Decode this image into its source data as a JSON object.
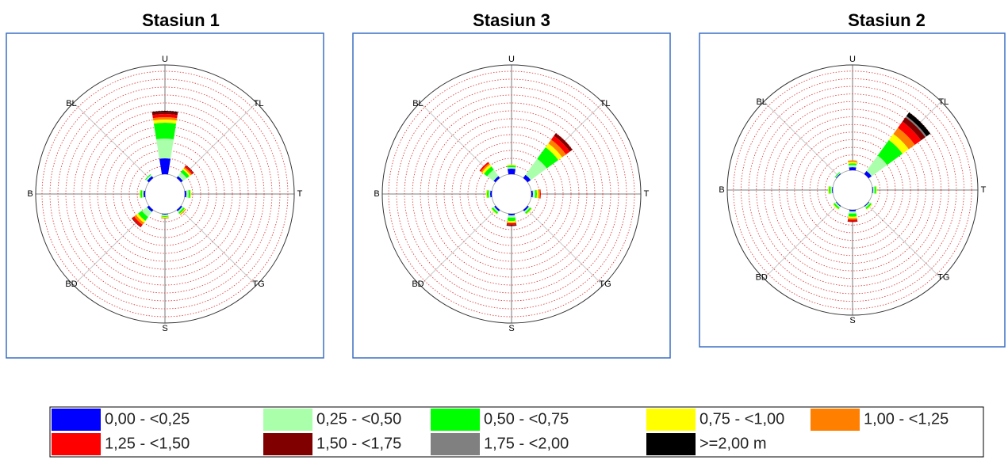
{
  "legend": [
    {
      "name": "0,00 - <0,25",
      "color": "#0000ff"
    },
    {
      "name": "0,25 - <0,50",
      "color": "#aaffaa"
    },
    {
      "name": "0,50 - <0,75",
      "color": "#00ff00"
    },
    {
      "name": "0,75 - <1,00",
      "color": "#ffff00"
    },
    {
      "name": "1,00 - <1,25",
      "color": "#ff8000"
    },
    {
      "name": "1,25 - <1,50",
      "color": "#ff0000"
    },
    {
      "name": "1,50 - <1,75",
      "color": "#800000"
    },
    {
      "name": "1,75 - <2,00",
      "color": "#808080"
    },
    {
      "name": ">=2,00 m",
      "color": "#000000"
    }
  ],
  "chart_data": [
    {
      "type": "rose",
      "title": "Stasiun 1",
      "directions": [
        "U",
        "TL",
        "T",
        "TG",
        "S",
        "BD",
        "B",
        "BL"
      ],
      "rlim": [
        0,
        13.5
      ],
      "rticks": [
        1,
        2,
        3,
        4,
        5,
        6,
        7,
        8,
        9,
        10,
        11,
        12,
        13
      ],
      "series": [
        {
          "values": [
            2,
            0.3,
            0.2,
            0.2,
            0.1,
            0.3,
            0.2,
            0.3
          ]
        },
        {
          "values": [
            2.5,
            0.6,
            0.3,
            0.2,
            0.2,
            0.8,
            0.2,
            0.2
          ]
        },
        {
          "values": [
            2,
            0.4,
            0.2,
            0.2,
            0.1,
            0.6,
            0.2,
            0.1
          ]
        },
        {
          "values": [
            0.4,
            0.2,
            0.1,
            0.1,
            0.1,
            0.3,
            0.1,
            0
          ]
        },
        {
          "values": [
            0.3,
            0.2,
            0,
            0.1,
            0.1,
            0.3,
            0,
            0
          ]
        },
        {
          "values": [
            0.4,
            0.2,
            0,
            0,
            0,
            0.3,
            0,
            0
          ]
        },
        {
          "values": [
            0.3,
            0.1,
            0,
            0,
            0,
            0.1,
            0,
            0
          ]
        },
        {
          "values": [
            0,
            0,
            0,
            0,
            0,
            0,
            0,
            0
          ]
        },
        {
          "values": [
            0.1,
            0,
            0,
            0,
            0,
            0,
            0,
            0
          ]
        }
      ]
    },
    {
      "type": "rose",
      "title": "Stasiun 3",
      "directions": [
        "U",
        "TL",
        "T",
        "TG",
        "S",
        "BD",
        "B",
        "BL"
      ],
      "rlim": [
        0,
        13.5
      ],
      "rticks": [
        1,
        2,
        3,
        4,
        5,
        6,
        7,
        8,
        9,
        10,
        11,
        12,
        13
      ],
      "series": [
        {
          "values": [
            0.7,
            0.5,
            0.2,
            0.2,
            0.2,
            0.2,
            0.2,
            0.3
          ]
        },
        {
          "values": [
            0.2,
            2.5,
            0.3,
            0.2,
            0.3,
            0.2,
            0.2,
            1
          ]
        },
        {
          "values": [
            0.2,
            1.8,
            0.2,
            0.2,
            0.4,
            0.2,
            0.2,
            0.5
          ]
        },
        {
          "values": [
            0.1,
            0.6,
            0.2,
            0.1,
            0.2,
            0.1,
            0.1,
            0.3
          ]
        },
        {
          "values": [
            0,
            0.6,
            0.2,
            0,
            0.1,
            0,
            0,
            0.2
          ]
        },
        {
          "values": [
            0,
            0.6,
            0.1,
            0,
            0.2,
            0,
            0,
            0.2
          ]
        },
        {
          "values": [
            0,
            0.4,
            0,
            0,
            0.1,
            0,
            0,
            0
          ]
        },
        {
          "values": [
            0,
            0,
            0,
            0,
            0,
            0,
            0,
            0
          ]
        },
        {
          "values": [
            0,
            0,
            0,
            0,
            0.05,
            0,
            0,
            0
          ]
        }
      ]
    },
    {
      "type": "rose",
      "title": "Stasiun 2",
      "directions": [
        "U",
        "TL",
        "T",
        "TG",
        "S",
        "BD",
        "B",
        "BL"
      ],
      "rlim": [
        0,
        13.5
      ],
      "rticks": [
        1,
        2,
        3,
        4,
        5,
        6,
        7,
        8,
        9,
        10,
        11,
        12,
        13
      ],
      "series": [
        {
          "values": [
            0.4,
            0.5,
            0.1,
            0.1,
            0.2,
            0.1,
            0.1,
            0.1
          ]
        },
        {
          "values": [
            0.3,
            2.5,
            0.2,
            0.2,
            0.3,
            0.2,
            0.2,
            0.1
          ]
        },
        {
          "values": [
            0.2,
            2.5,
            0.2,
            0.2,
            0.4,
            0.2,
            0.2,
            0.1
          ]
        },
        {
          "values": [
            0.2,
            1,
            0.1,
            0.1,
            0.2,
            0.1,
            0.1,
            0
          ]
        },
        {
          "values": [
            0.2,
            1,
            0,
            0,
            0.2,
            0,
            0,
            0
          ]
        },
        {
          "values": [
            0,
            1,
            0,
            0,
            0.2,
            0,
            0,
            0
          ]
        },
        {
          "values": [
            0,
            0.7,
            0,
            0,
            0.1,
            0,
            0,
            0
          ]
        },
        {
          "values": [
            0,
            0.2,
            0,
            0,
            0,
            0,
            0,
            0
          ]
        },
        {
          "values": [
            0,
            0.6,
            0,
            0,
            0,
            0,
            0,
            0
          ]
        }
      ]
    }
  ]
}
